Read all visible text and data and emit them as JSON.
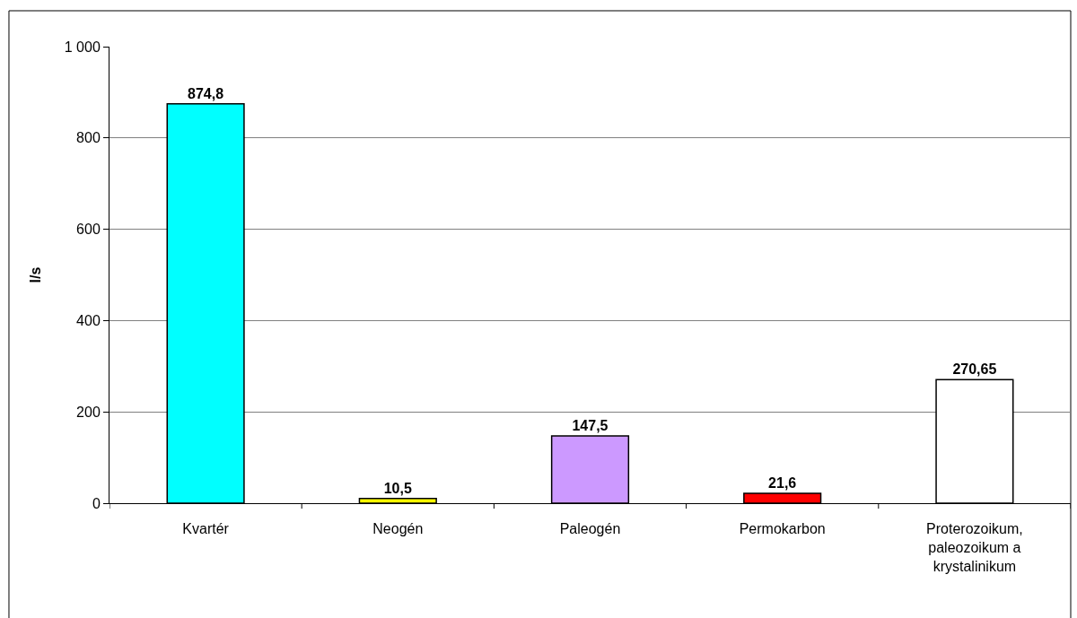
{
  "chart_data": {
    "type": "bar",
    "ylabel": "l/s",
    "categories": [
      "Kvartér",
      "Neogén",
      "Paleogén",
      "Permokarbon",
      "Proterozoikum, paleozoikum a krystalinikum"
    ],
    "values": [
      874.8,
      10.5,
      147.5,
      21.6,
      270.65
    ],
    "value_labels": [
      "874,8",
      "10,5",
      "147,5",
      "21,6",
      "270,65"
    ],
    "colors": [
      "#00ffff",
      "#ffff00",
      "#cc99ff",
      "#ff0000",
      "#ffffff"
    ],
    "ylim": [
      0,
      1000
    ],
    "yticks": [
      0,
      200,
      400,
      600,
      800,
      {
        "value": 1000,
        "label": "1 000"
      }
    ],
    "grid": "y"
  }
}
